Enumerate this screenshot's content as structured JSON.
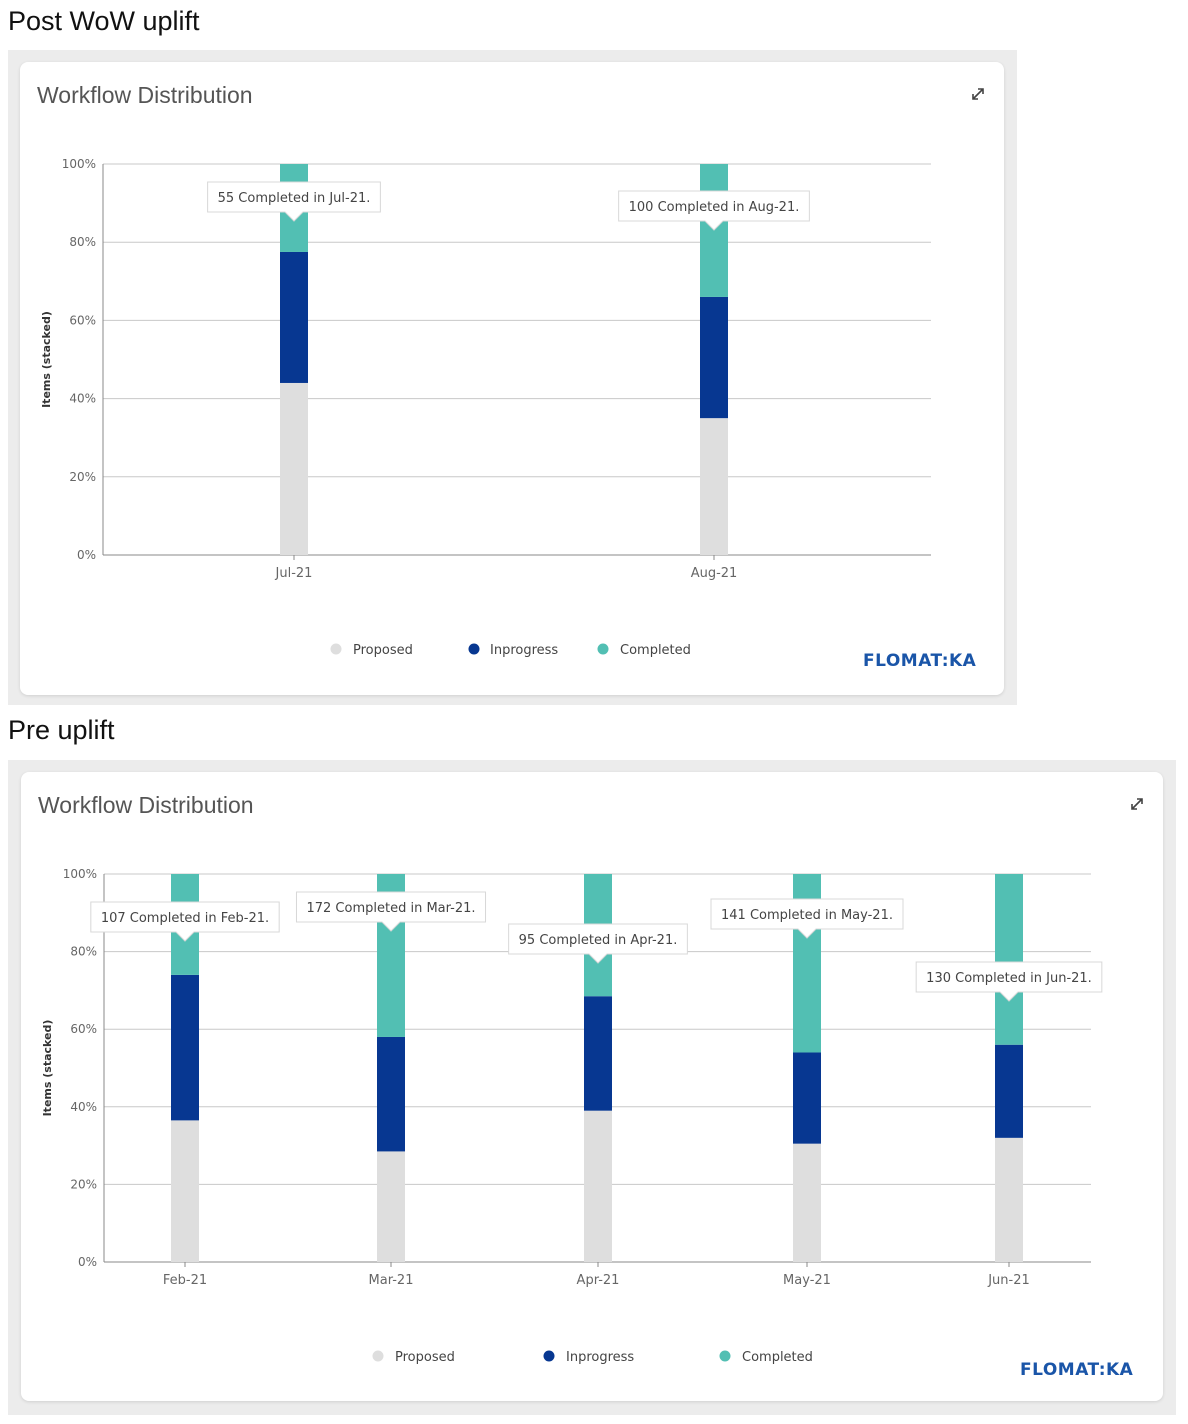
{
  "sections": [
    {
      "heading": "Post WoW uplift",
      "card_title": "Workflow Distribution",
      "logo": "FLOMAT:KA"
    },
    {
      "heading": "Pre uplift",
      "card_title": "Workflow Distribution",
      "logo": "FLOMAT:KA"
    }
  ],
  "colors": {
    "proposed": "#dedede",
    "inprogress": "#073791",
    "completed": "#52bfb3",
    "grid": "#c8c8c8",
    "logo": "#1a55a8"
  },
  "chart_data": [
    {
      "type": "bar",
      "stacked": "percent",
      "title": "Workflow Distribution",
      "ylabel": "Items (stacked)",
      "ylim": [
        0,
        100
      ],
      "yticks": [
        "0%",
        "20%",
        "40%",
        "60%",
        "80%",
        "100%"
      ],
      "grid": true,
      "legend_position": "bottom",
      "categories": [
        "Jul-21",
        "Aug-21"
      ],
      "series": [
        {
          "name": "Proposed",
          "values": [
            44,
            35
          ]
        },
        {
          "name": "Inprogress",
          "values": [
            33.5,
            31
          ]
        },
        {
          "name": "Completed",
          "values": [
            22.5,
            34
          ]
        }
      ],
      "annotations": [
        "55 Completed in Jul-21.",
        "100 Completed in Aug-21."
      ]
    },
    {
      "type": "bar",
      "stacked": "percent",
      "title": "Workflow Distribution",
      "ylabel": "Items (stacked)",
      "ylim": [
        0,
        100
      ],
      "yticks": [
        "0%",
        "20%",
        "40%",
        "60%",
        "80%",
        "100%"
      ],
      "grid": true,
      "legend_position": "bottom",
      "categories": [
        "Feb-21",
        "Mar-21",
        "Apr-21",
        "May-21",
        "Jun-21"
      ],
      "series": [
        {
          "name": "Proposed",
          "values": [
            36.5,
            28.5,
            39,
            30.5,
            32
          ]
        },
        {
          "name": "Inprogress",
          "values": [
            37.5,
            29.5,
            29.5,
            23.5,
            24
          ]
        },
        {
          "name": "Completed",
          "values": [
            26,
            42,
            31.5,
            46,
            44
          ]
        }
      ],
      "annotations": [
        "107 Completed in Feb-21.",
        "172 Completed in Mar-21.",
        "95 Completed in Apr-21.",
        "141 Completed in May-21.",
        "130 Completed in Jun-21."
      ]
    }
  ]
}
